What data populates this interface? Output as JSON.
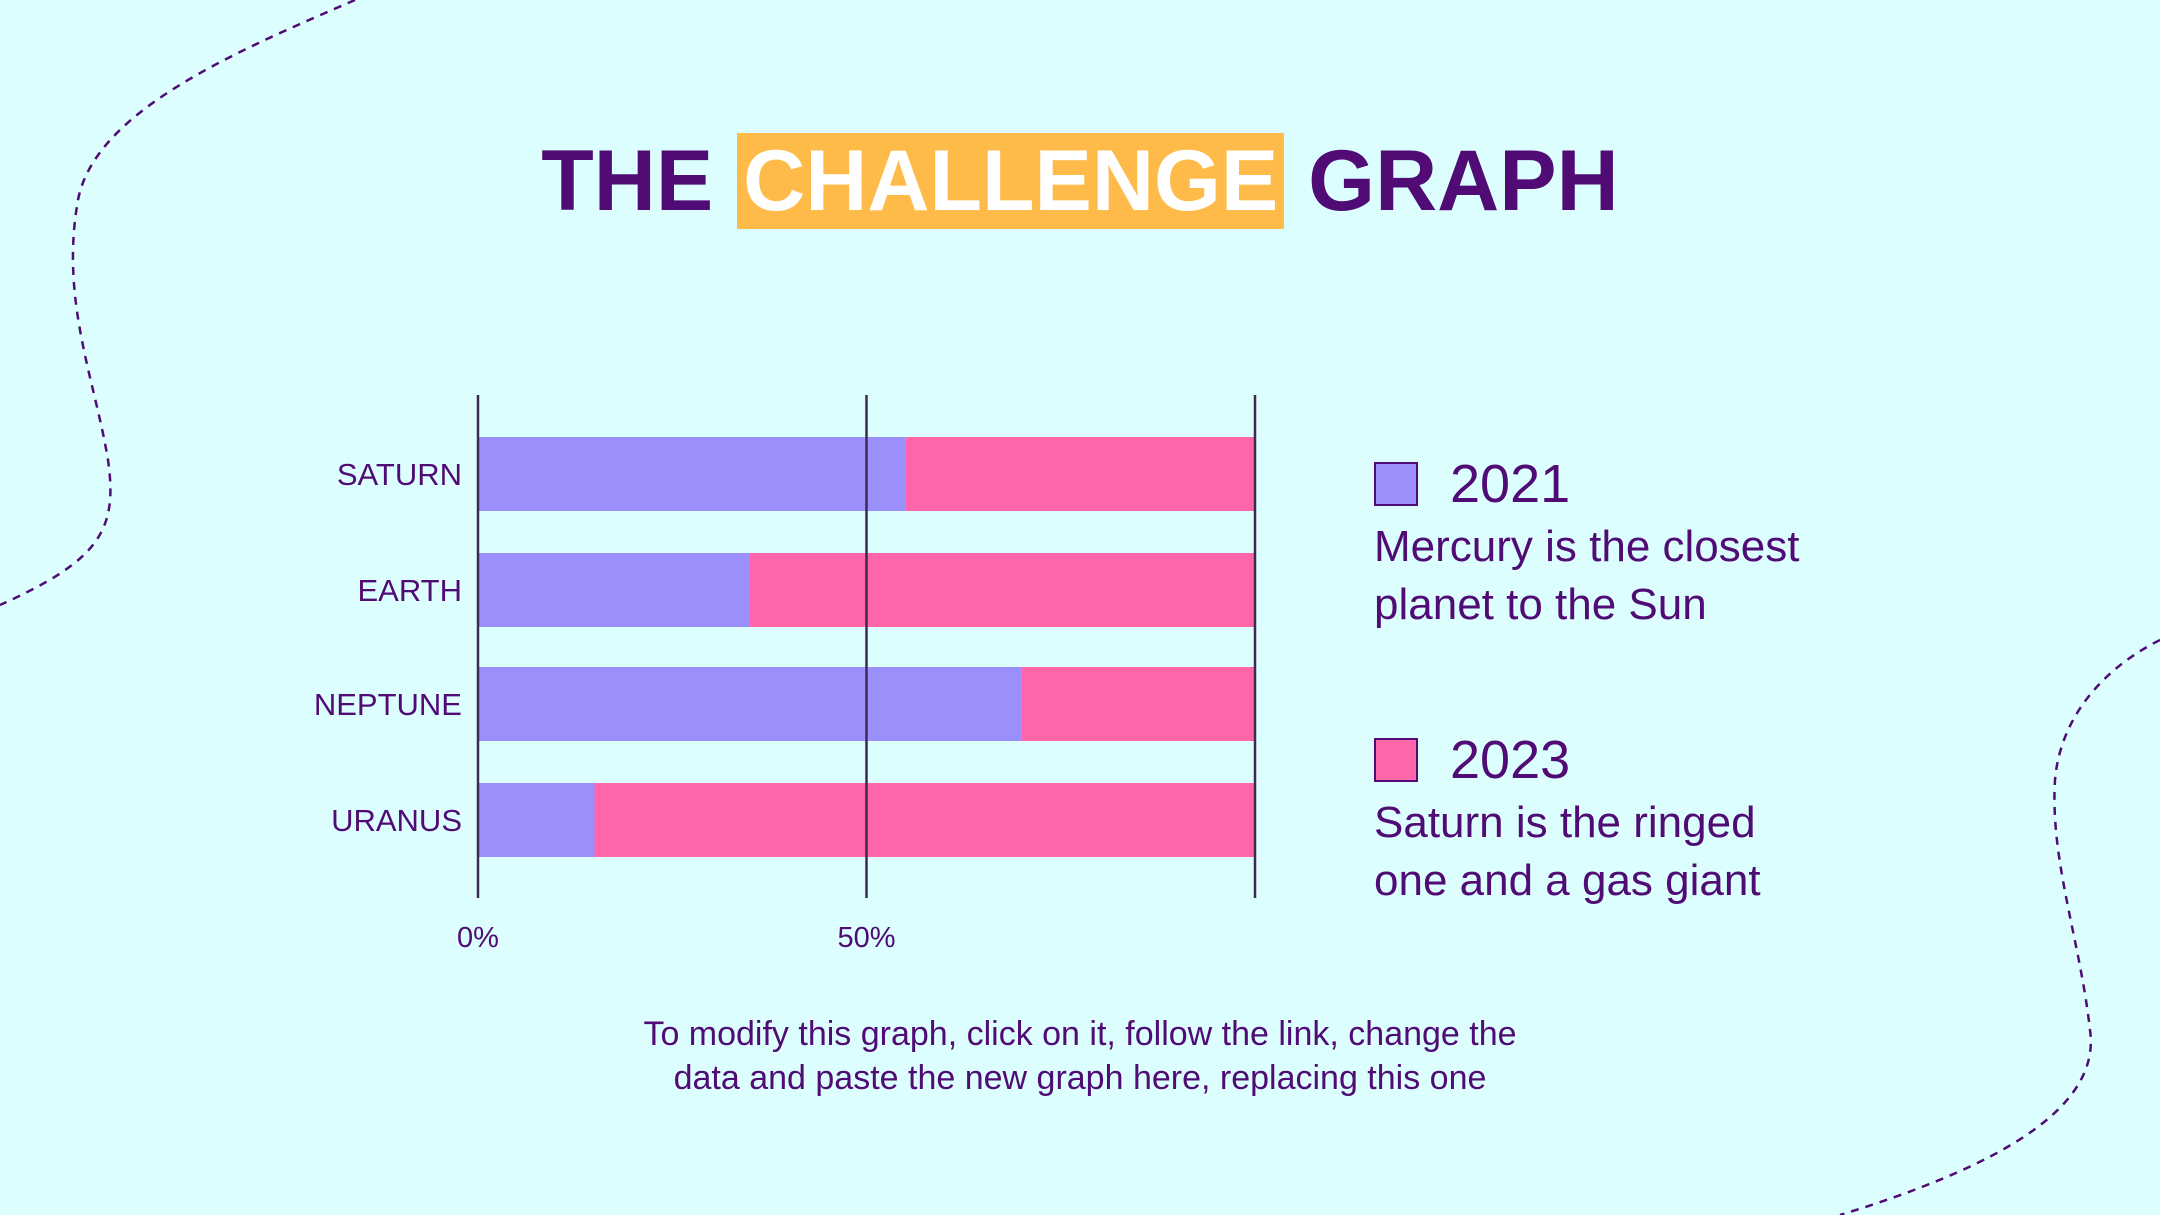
{
  "title": {
    "part1": "THE",
    "highlight": "CHALLENGE",
    "part2": "GRAPH"
  },
  "colors": {
    "background": "#dcfefe",
    "text": "#500b75",
    "highlight": "#ffbb4a",
    "series_2021": "#9b8ffb",
    "series_2023": "#ff66aa"
  },
  "chart_data": {
    "type": "bar",
    "orientation": "horizontal",
    "stacked": "percent",
    "categories": [
      "SATURN",
      "EARTH",
      "NEPTUNE",
      "URANUS"
    ],
    "series": [
      {
        "name": "2021",
        "values": [
          55,
          35,
          70,
          15
        ]
      },
      {
        "name": "2023",
        "values": [
          45,
          65,
          30,
          85
        ]
      }
    ],
    "xlim": [
      0,
      100
    ],
    "xticks": [
      0,
      50,
      100
    ],
    "xtick_labels": [
      "0%",
      "50%",
      ""
    ],
    "grid": true,
    "legend": "right"
  },
  "legend": [
    {
      "year": "2021",
      "line1": "Mercury is the closest",
      "line2": "planet to the Sun",
      "color": "#9b8ffb"
    },
    {
      "year": "2023",
      "line1": "Saturn is the ringed",
      "line2": "one and a gas giant",
      "color": "#ff66aa"
    }
  ],
  "note": {
    "line1": "To modify this graph, click on it, follow the link, change the",
    "line2": "data and paste the new graph here, replacing this one"
  }
}
